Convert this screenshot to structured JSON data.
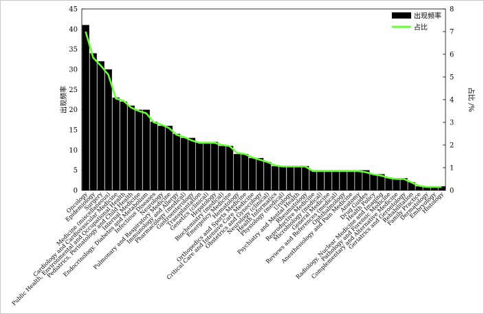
{
  "chart_data": {
    "type": "bar",
    "title": "",
    "xlabel": "",
    "ylabel": "出现频率",
    "y2label": "占比 /%",
    "ylim": [
      0,
      45
    ],
    "y2lim": [
      0,
      8
    ],
    "yticks": [
      0,
      5,
      10,
      15,
      20,
      25,
      30,
      35,
      40,
      45
    ],
    "y2ticks": [
      0,
      1,
      2,
      3,
      4,
      5,
      6,
      7,
      8
    ],
    "legend_position": "top-right",
    "categories": [
      "Oncology",
      "Epidemiology",
      "Surgery",
      "Medicine (miscellaneous)",
      "Cardiology and Cardiovascular Medicine",
      "Public Health, Environmental and Occupational Health",
      "Pediatrics, Perinatology and Child Health",
      "Internal Medicine",
      "Endocrinology, Diabetes and Metabolism",
      "Infectious Diseases",
      "Neurology",
      "Pulmonary and Respiratory Medicine",
      "Immunology and Allergy",
      "Pharmacology (medical)",
      "Gastroenterology",
      "Transplantation",
      "Genetics (clinical)",
      "Hepatology",
      "Biochemistry (medical)",
      "Emergency Medicine",
      "Hematology",
      "Orthopedics and Sports Medicine",
      "Critical Care and Intensive Care Medicine",
      "Obstetrics and Gynecology",
      "Neurology (clinical)",
      "Health Informatics",
      "Physiology (medical)",
      "Urology",
      "Psychiatry and Mental Health",
      "Rheumatology",
      "Reproductive Medicine",
      "Microbiology (medical)",
      "General Medicine",
      "Reviews and References (medical)",
      "Ophthalmology",
      "Anesthesiology and Pain Medicine",
      "Anatomy",
      "Drug Guides",
      "Health Policy",
      "Radiology, Nuclear Medicine and Imaging",
      "Pathology and Forensic Medicine",
      "Complementary and Alternative Medicine",
      "Geriatrics and Gerontology",
      "Rehabilitation",
      "Family Practice",
      "Dermatology",
      "Embryology",
      "Histology"
    ],
    "series": [
      {
        "name": "出现频率",
        "type": "bar",
        "axis": "left",
        "color": "#000000",
        "values": [
          41,
          34,
          32,
          30,
          23,
          22,
          21,
          20,
          20,
          17,
          16,
          16,
          14,
          13,
          13,
          12,
          12,
          12,
          11,
          11,
          9,
          9,
          8,
          8,
          7,
          6,
          6,
          6,
          6,
          6,
          5,
          5,
          5,
          5,
          5,
          5,
          5,
          5,
          4,
          4,
          3,
          3,
          3,
          2,
          1,
          1,
          1,
          1
        ]
      },
      {
        "name": "占比",
        "type": "line",
        "axis": "right",
        "color": "#66ff33",
        "values": [
          7.0,
          5.85,
          5.5,
          5.1,
          4.05,
          3.95,
          3.65,
          3.5,
          3.4,
          3.0,
          2.9,
          2.75,
          2.45,
          2.35,
          2.2,
          2.1,
          2.1,
          2.1,
          2.0,
          1.95,
          1.65,
          1.6,
          1.45,
          1.35,
          1.25,
          1.1,
          1.05,
          1.05,
          1.05,
          1.05,
          0.85,
          0.85,
          0.85,
          0.85,
          0.85,
          0.85,
          0.85,
          0.8,
          0.7,
          0.65,
          0.55,
          0.5,
          0.5,
          0.35,
          0.2,
          0.15,
          0.15,
          0.15
        ]
      }
    ]
  }
}
